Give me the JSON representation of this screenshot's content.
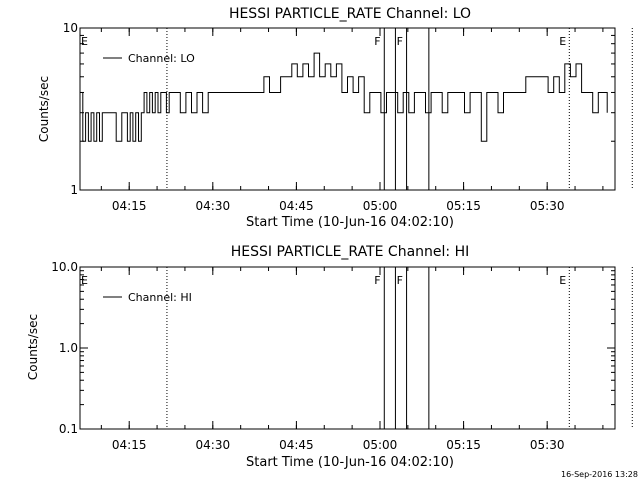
{
  "timestamp": "16-Sep-2016 13:28",
  "chart_data": [
    {
      "type": "line",
      "title": "HESSI PARTICLE_RATE Channel: LO",
      "xlabel": "Start Time (10-Jun-16 04:02:10)",
      "ylabel": "Counts/sec",
      "yscale": "log",
      "ylim": [
        1,
        10
      ],
      "ytick_labels": [
        "10",
        "1"
      ],
      "xlim_minutes": [
        4.0,
        100.0
      ],
      "xtick_labels": [
        "04:15",
        "04:30",
        "04:45",
        "05:00",
        "05:15",
        "05:30"
      ],
      "legend": "Channel: LO",
      "legend_position": "top-left",
      "markers": [
        {
          "label": "E",
          "minute": 0.0,
          "style": "dotted"
        },
        {
          "label": "",
          "minute": 15.3,
          "style": "dotted"
        },
        {
          "label": "F",
          "minute": 54.3,
          "style": "solid"
        },
        {
          "label": "",
          "minute": 56.3,
          "style": "solid"
        },
        {
          "label": "F",
          "minute": 58.3,
          "style": "solid"
        },
        {
          "label": "",
          "minute": 62.3,
          "style": "solid"
        },
        {
          "label": "E",
          "minute": 87.5,
          "style": "dotted"
        },
        {
          "label": "",
          "minute": 98.8,
          "style": "dotted"
        }
      ],
      "series": [
        {
          "name": "Channel: LO",
          "times_minutes": [
            4.0,
            4.5,
            5.0,
            5.5,
            6.0,
            6.5,
            7.0,
            7.5,
            8.0,
            8.5,
            9.0,
            9.5,
            10.0,
            10.5,
            11.0,
            11.5,
            12.0,
            12.5,
            13.0,
            13.5,
            14.0,
            14.5,
            15.0,
            15.5,
            16.0,
            16.5,
            17.0,
            17.5,
            18.0,
            18.5,
            19.0,
            19.5,
            20.0,
            21.0,
            22.0,
            23.0,
            24.0,
            25.0,
            26.0,
            27.0,
            28.0,
            29.0,
            30.0,
            32.0,
            34.0,
            36.0,
            37.0,
            38.0,
            39.0,
            40.0,
            41.0,
            42.0,
            43.0,
            44.0,
            45.0,
            46.0,
            47.0,
            48.0,
            49.0,
            50.0,
            51.0,
            52.0,
            53.0,
            54.0,
            55.0,
            56.0,
            57.0,
            58.0,
            59.0,
            60.0,
            61.0,
            62.0,
            63.0,
            64.0,
            65.0,
            66.0,
            67.0,
            68.0,
            69.0,
            70.0,
            71.0,
            72.0,
            73.0,
            74.0,
            75.0,
            76.0,
            77.0,
            78.0,
            79.0,
            80.0,
            81.0,
            82.0,
            83.0,
            84.0,
            85.0,
            86.0,
            87.0,
            88.0,
            89.0,
            90.0,
            91.0,
            92.0,
            93.0,
            94.0,
            95.0,
            96.0,
            97.0,
            98.0,
            98.6
          ],
          "values": [
            4,
            2,
            3,
            2,
            3,
            2,
            3,
            2,
            3,
            3,
            3,
            3,
            3,
            2,
            2,
            3,
            3,
            2,
            3,
            2,
            3,
            2,
            3,
            4,
            3,
            4,
            3,
            4,
            3,
            4,
            4,
            3,
            4,
            4,
            3,
            4,
            3,
            4,
            3,
            4,
            4,
            4,
            4,
            4,
            4,
            4,
            5,
            4,
            4,
            5,
            5,
            6,
            5,
            6,
            5,
            7,
            5,
            6,
            5,
            6,
            4,
            5,
            4,
            5,
            3,
            4,
            4,
            3,
            4,
            4,
            3,
            4,
            3,
            4,
            4,
            3,
            4,
            4,
            3,
            4,
            4,
            4,
            3,
            4,
            4,
            2,
            4,
            4,
            3,
            4,
            4,
            4,
            4,
            5,
            5,
            5,
            5,
            4,
            5,
            4,
            6,
            5,
            6,
            4,
            4,
            3,
            4,
            4,
            3
          ]
        }
      ]
    },
    {
      "type": "line",
      "title": "HESSI PARTICLE_RATE Channel: HI",
      "xlabel": "Start Time (10-Jun-16 04:02:10)",
      "ylabel": "Counts/sec",
      "yscale": "log",
      "ylim": [
        0.1,
        10
      ],
      "ytick_labels": [
        "10.0",
        "1.0",
        "0.1"
      ],
      "xlim_minutes": [
        4.0,
        100.0
      ],
      "xtick_labels": [
        "04:15",
        "04:30",
        "04:45",
        "05:00",
        "05:15",
        "05:30"
      ],
      "legend": "Channel: HI",
      "legend_position": "top-left",
      "markers": [
        {
          "label": "E",
          "minute": 0.0,
          "style": "dotted"
        },
        {
          "label": "",
          "minute": 15.3,
          "style": "dotted"
        },
        {
          "label": "F",
          "minute": 54.3,
          "style": "solid"
        },
        {
          "label": "",
          "minute": 56.3,
          "style": "solid"
        },
        {
          "label": "F",
          "minute": 58.3,
          "style": "solid"
        },
        {
          "label": "",
          "minute": 62.3,
          "style": "solid"
        },
        {
          "label": "E",
          "minute": 87.5,
          "style": "dotted"
        },
        {
          "label": "",
          "minute": 98.8,
          "style": "dotted"
        }
      ],
      "series": [
        {
          "name": "Channel: HI",
          "times_minutes": [],
          "values": []
        }
      ]
    }
  ]
}
